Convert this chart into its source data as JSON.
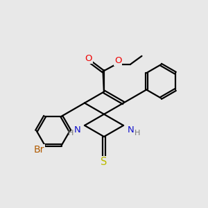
{
  "bg_color": "#E8E8E8",
  "bond_color": "#000000",
  "bond_width": 1.6,
  "dbo": 0.055,
  "atom_colors": {
    "Br": "#B05A00",
    "O": "#EE0000",
    "N": "#1010CC",
    "S": "#BBBB00",
    "C": "#000000",
    "H": "#777777"
  },
  "fs": 9.5
}
